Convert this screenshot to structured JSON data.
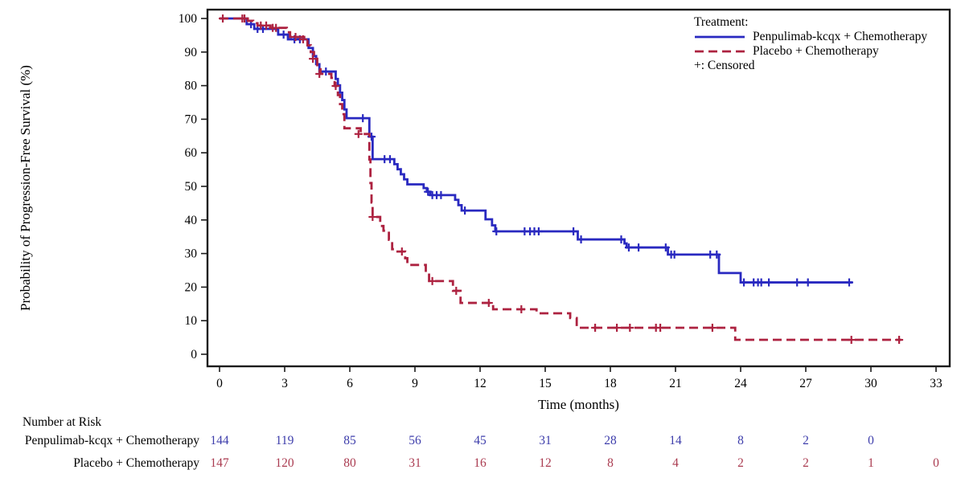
{
  "colors": {
    "penpulimab_line": "#2929c0",
    "placebo_line": "#ad2240",
    "risk_penpulimab_text": "#3d3dab",
    "risk_placebo_text": "#aa3b50",
    "axis": "#1c1c1c"
  },
  "y_axis": {
    "label": "Probability of Progression-Free Survival (%)",
    "min": 0,
    "max": 100,
    "ticks": [
      0,
      10,
      20,
      30,
      40,
      50,
      60,
      70,
      80,
      90,
      100
    ]
  },
  "x_axis": {
    "label": "Time (months)",
    "min": 0,
    "max": 33,
    "ticks": [
      0,
      3,
      6,
      9,
      12,
      15,
      18,
      21,
      24,
      27,
      30,
      33
    ]
  },
  "legend": {
    "heading": "Treatment:",
    "items": [
      {
        "label": "Penpulimab-kcqx + Chemotherapy",
        "color": "#2929c0",
        "style": "solid"
      },
      {
        "label": "Placebo + Chemotherapy",
        "color": "#ad2240",
        "style": "dashed"
      }
    ],
    "censored_note": "+: Censored"
  },
  "chart_data": {
    "type": "line",
    "subtype": "kaplan-meier-step",
    "xlabel": "Time (months)",
    "ylabel": "Probability of Progression-Free Survival (%)",
    "xlim": [
      0,
      33
    ],
    "ylim": [
      0,
      100
    ],
    "grid": false,
    "legend_position": "top-right-inside",
    "series": [
      {
        "name": "Penpulimab-kcqx + Chemotherapy",
        "color": "#2929c0",
        "line_style": "solid",
        "end_time": 29.15,
        "steps": [
          [
            0,
            100
          ],
          [
            1.25,
            98.3
          ],
          [
            1.6,
            96.9
          ],
          [
            2.7,
            95.2
          ],
          [
            3.15,
            93.8
          ],
          [
            4.1,
            91.2
          ],
          [
            4.3,
            88.8
          ],
          [
            4.45,
            86.4
          ],
          [
            4.6,
            84.2
          ],
          [
            5.35,
            82.0
          ],
          [
            5.45,
            80.1
          ],
          [
            5.55,
            77.9
          ],
          [
            5.65,
            75.7
          ],
          [
            5.75,
            72.9
          ],
          [
            5.85,
            70.3
          ],
          [
            6.9,
            64.8
          ],
          [
            7.05,
            58.1
          ],
          [
            8.05,
            56.6
          ],
          [
            8.2,
            55.1
          ],
          [
            8.35,
            53.6
          ],
          [
            8.5,
            52.1
          ],
          [
            8.65,
            50.6
          ],
          [
            9.4,
            49.5
          ],
          [
            9.55,
            48.4
          ],
          [
            9.7,
            47.4
          ],
          [
            10.85,
            46.0
          ],
          [
            11.0,
            44.4
          ],
          [
            11.15,
            42.8
          ],
          [
            12.25,
            40.2
          ],
          [
            12.55,
            38.4
          ],
          [
            12.7,
            36.6
          ],
          [
            16.5,
            34.2
          ],
          [
            18.65,
            33.0
          ],
          [
            18.75,
            31.8
          ],
          [
            20.65,
            29.7
          ],
          [
            23.0,
            24.2
          ],
          [
            24.0,
            21.4
          ]
        ],
        "censors": [
          [
            1.45,
            98.3
          ],
          [
            1.75,
            96.9
          ],
          [
            2.0,
            96.9
          ],
          [
            2.95,
            95.2
          ],
          [
            3.45,
            93.8
          ],
          [
            3.7,
            93.8
          ],
          [
            4.9,
            84.2
          ],
          [
            6.6,
            70.3
          ],
          [
            7.0,
            64.8
          ],
          [
            7.6,
            58.1
          ],
          [
            7.85,
            58.1
          ],
          [
            9.6,
            48.4
          ],
          [
            9.8,
            47.4
          ],
          [
            10.0,
            47.4
          ],
          [
            10.2,
            47.4
          ],
          [
            11.3,
            42.8
          ],
          [
            12.75,
            36.6
          ],
          [
            14.05,
            36.6
          ],
          [
            14.3,
            36.6
          ],
          [
            14.5,
            36.6
          ],
          [
            14.7,
            36.6
          ],
          [
            16.3,
            36.6
          ],
          [
            16.65,
            34.2
          ],
          [
            18.5,
            34.2
          ],
          [
            18.85,
            31.8
          ],
          [
            19.3,
            31.8
          ],
          [
            20.55,
            31.8
          ],
          [
            20.8,
            29.7
          ],
          [
            20.95,
            29.7
          ],
          [
            22.6,
            29.7
          ],
          [
            22.9,
            29.7
          ],
          [
            24.15,
            21.4
          ],
          [
            24.6,
            21.4
          ],
          [
            24.8,
            21.4
          ],
          [
            24.95,
            21.4
          ],
          [
            25.3,
            21.4
          ],
          [
            26.6,
            21.4
          ],
          [
            27.1,
            21.4
          ],
          [
            29.0,
            21.4
          ]
        ]
      },
      {
        "name": "Placebo + Chemotherapy",
        "color": "#ad2240",
        "line_style": "dashed",
        "end_time": 31.4,
        "steps": [
          [
            0,
            100
          ],
          [
            1.3,
            99.3
          ],
          [
            1.55,
            98.6
          ],
          [
            1.75,
            97.9
          ],
          [
            2.35,
            97.2
          ],
          [
            3.1,
            95.9
          ],
          [
            3.25,
            94.5
          ],
          [
            3.9,
            93.8
          ],
          [
            4.05,
            92.0
          ],
          [
            4.2,
            90.0
          ],
          [
            4.35,
            88.0
          ],
          [
            4.5,
            84.9
          ],
          [
            4.65,
            83.5
          ],
          [
            5.15,
            82.3
          ],
          [
            5.3,
            79.9
          ],
          [
            5.45,
            77.2
          ],
          [
            5.55,
            74.5
          ],
          [
            5.65,
            71.5
          ],
          [
            5.75,
            67.3
          ],
          [
            6.5,
            65.6
          ],
          [
            6.9,
            58.0
          ],
          [
            6.95,
            51.0
          ],
          [
            7.0,
            45.2
          ],
          [
            7.05,
            40.9
          ],
          [
            7.4,
            38.2
          ],
          [
            7.55,
            36.8
          ],
          [
            7.8,
            34.1
          ],
          [
            7.95,
            31.3
          ],
          [
            8.1,
            30.6
          ],
          [
            8.55,
            28.6
          ],
          [
            8.65,
            26.6
          ],
          [
            9.5,
            24.2
          ],
          [
            9.65,
            21.8
          ],
          [
            10.75,
            18.9
          ],
          [
            11.1,
            15.3
          ],
          [
            12.6,
            13.4
          ],
          [
            14.6,
            12.2
          ],
          [
            16.15,
            10.8
          ],
          [
            16.45,
            7.9
          ],
          [
            23.75,
            4.3
          ]
        ],
        "censors": [
          [
            0.15,
            100
          ],
          [
            1.05,
            100
          ],
          [
            1.15,
            100
          ],
          [
            1.9,
            97.9
          ],
          [
            2.15,
            97.9
          ],
          [
            2.45,
            97.2
          ],
          [
            2.6,
            97.2
          ],
          [
            3.5,
            94.5
          ],
          [
            3.85,
            93.8
          ],
          [
            4.3,
            88.0
          ],
          [
            4.6,
            83.5
          ],
          [
            5.35,
            79.9
          ],
          [
            6.4,
            65.6
          ],
          [
            7.05,
            40.9
          ],
          [
            8.4,
            30.6
          ],
          [
            9.8,
            21.8
          ],
          [
            10.9,
            18.9
          ],
          [
            12.4,
            15.3
          ],
          [
            13.9,
            13.4
          ],
          [
            17.3,
            7.9
          ],
          [
            18.3,
            7.9
          ],
          [
            18.9,
            7.9
          ],
          [
            20.1,
            7.9
          ],
          [
            20.3,
            7.9
          ],
          [
            22.7,
            7.9
          ],
          [
            29.1,
            4.3
          ],
          [
            31.3,
            4.3
          ]
        ]
      }
    ]
  },
  "risk_table": {
    "heading": "Number at Risk",
    "times": [
      0,
      3,
      6,
      9,
      12,
      15,
      18,
      21,
      24,
      27,
      30,
      33
    ],
    "rows": [
      {
        "label": "Penpulimab-kcqx + Chemotherapy",
        "color": "#3d3dab",
        "values": [
          "144",
          "119",
          "85",
          "56",
          "45",
          "31",
          "28",
          "14",
          "8",
          "2",
          "0",
          ""
        ]
      },
      {
        "label": "Placebo + Chemotherapy",
        "color": "#aa3b50",
        "values": [
          "147",
          "120",
          "80",
          "31",
          "16",
          "12",
          "8",
          "4",
          "2",
          "2",
          "1",
          "0"
        ]
      }
    ]
  }
}
